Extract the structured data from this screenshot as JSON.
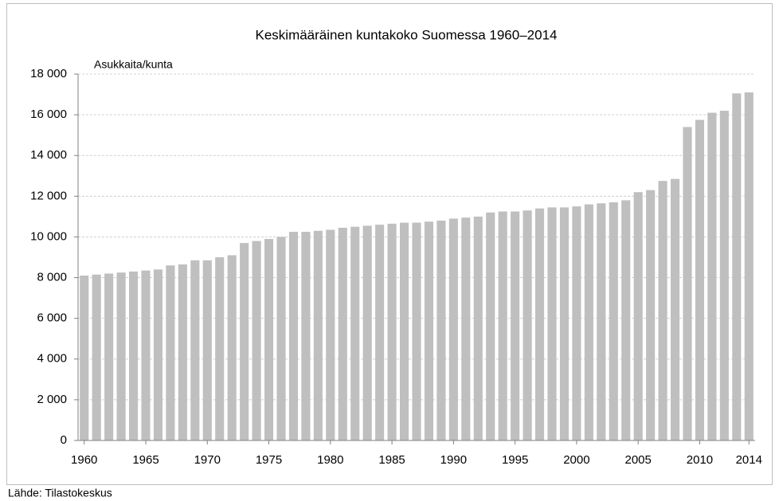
{
  "chart_data": {
    "type": "bar",
    "title": "Keskimääräinen kuntakoko Suomessa 1960–2014",
    "y_label": "Asukkaita/kunta",
    "source": "Lähde: Tilastokeskus",
    "categories": [
      "1960",
      null,
      null,
      null,
      null,
      "1965",
      null,
      null,
      null,
      null,
      "1970",
      null,
      null,
      null,
      null,
      "1975",
      null,
      null,
      null,
      null,
      "1980",
      null,
      null,
      null,
      null,
      "1985",
      null,
      null,
      null,
      null,
      "1990",
      null,
      null,
      null,
      null,
      "1995",
      null,
      null,
      null,
      null,
      "2000",
      null,
      null,
      null,
      null,
      "2005",
      null,
      null,
      null,
      null,
      "2010",
      null,
      null,
      null,
      "2014"
    ],
    "values": [
      8100,
      8150,
      8200,
      8250,
      8300,
      8350,
      8400,
      8600,
      8650,
      8850,
      8850,
      9000,
      9100,
      9700,
      9800,
      9900,
      10000,
      10250,
      10250,
      10300,
      10350,
      10450,
      10500,
      10550,
      10600,
      10650,
      10700,
      10700,
      10750,
      10800,
      10900,
      10950,
      11000,
      11200,
      11250,
      11250,
      11300,
      11400,
      11450,
      11450,
      11500,
      11600,
      11650,
      11700,
      11800,
      12200,
      12300,
      12750,
      12850,
      15400,
      15750,
      16100,
      16200,
      17050,
      17100
    ],
    "color": "#bfbfbf",
    "ylim": [
      0,
      18000
    ],
    "yticks": [
      0,
      {
        "value": 2000,
        "label": "2 000"
      },
      {
        "value": 4000,
        "label": "4 000"
      },
      {
        "value": 6000,
        "label": "6 000"
      },
      {
        "value": 8000,
        "label": "8 000"
      },
      {
        "value": 10000,
        "label": "10 000"
      },
      {
        "value": 12000,
        "label": "12 000"
      },
      {
        "value": 14000,
        "label": "14 000"
      },
      {
        "value": 16000,
        "label": "16 000"
      },
      {
        "value": 18000,
        "label": "18 000"
      }
    ],
    "grid": true
  }
}
